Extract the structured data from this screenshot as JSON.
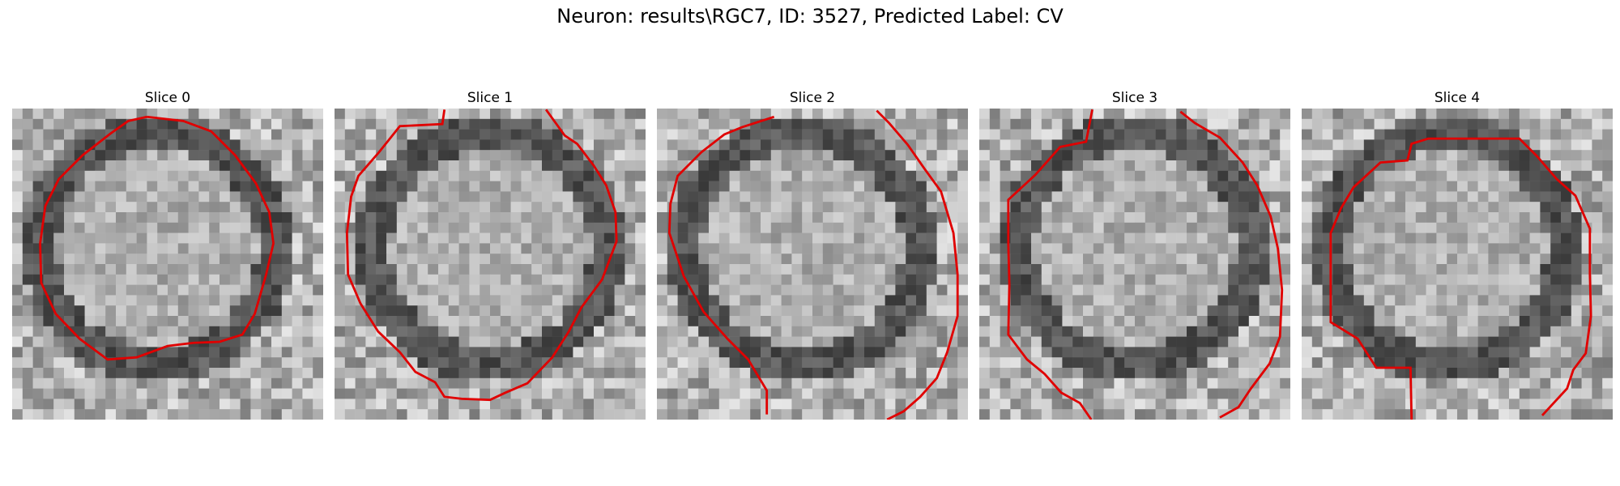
{
  "figure": {
    "title": "Neuron: results\\RGC7, ID: 3527, Predicted Label: CV"
  },
  "colors": {
    "contour": "#e00000",
    "background": "#ffffff",
    "text": "#000000"
  },
  "panels": [
    {
      "title": "Slice 0"
    },
    {
      "title": "Slice 1"
    },
    {
      "title": "Slice 2"
    },
    {
      "title": "Slice 3"
    },
    {
      "title": "Slice 4"
    }
  ]
}
